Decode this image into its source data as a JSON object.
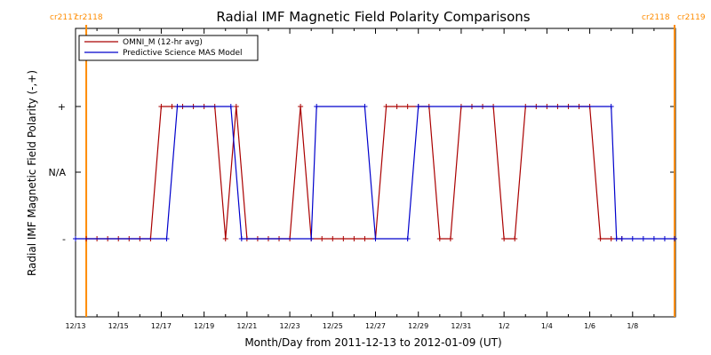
{
  "chart_data": {
    "type": "line",
    "title": "Radial IMF Magnetic Field Polarity Comparisons",
    "xlabel": "Month/Day from 2011-12-13 to 2012-01-09 (UT)",
    "ylabel": "Radial IMF Magnetic Field Polarity (-,+)",
    "xlim": [
      "2011-12-13",
      "2012-01-09"
    ],
    "x_ticks": [
      "12/13",
      "12/15",
      "12/17",
      "12/19",
      "12/21",
      "12/23",
      "12/25",
      "12/27",
      "12/29",
      "12/31",
      "1/2",
      "1/4",
      "1/6",
      "1/8"
    ],
    "y_ticks": [
      "+",
      "N/A",
      "-"
    ],
    "y_levels": [
      "+",
      "N/A",
      "-"
    ],
    "carrington_markers": [
      {
        "date": "2011-12-13 12:00",
        "left_label": "cr2117",
        "right_label": "cr2118",
        "color": "#ff8c00"
      },
      {
        "date": "2012-01-09 23:00",
        "left_label": "cr2118",
        "right_label": "cr2119",
        "color": "#ff8c00"
      }
    ],
    "legend": {
      "position": "top-left"
    },
    "series": [
      {
        "name": "OMNI_M (12-hr avg)",
        "color": "#aa0000",
        "markers": true,
        "points": [
          [
            "2011-12-13 12:00",
            "-"
          ],
          [
            "2011-12-14 00:00",
            "-"
          ],
          [
            "2011-12-14 12:00",
            "-"
          ],
          [
            "2011-12-15 00:00",
            "-"
          ],
          [
            "2011-12-15 12:00",
            "-"
          ],
          [
            "2011-12-16 00:00",
            "-"
          ],
          [
            "2011-12-16 12:00",
            "-"
          ],
          [
            "2011-12-17 00:00",
            "+"
          ],
          [
            "2011-12-17 12:00",
            "+"
          ],
          [
            "2011-12-18 00:00",
            "+"
          ],
          [
            "2011-12-18 12:00",
            "+"
          ],
          [
            "2011-12-19 00:00",
            "+"
          ],
          [
            "2011-12-19 12:00",
            "+"
          ],
          [
            "2011-12-20 00:00",
            "-"
          ],
          [
            "2011-12-20 12:00",
            "+"
          ],
          [
            "2011-12-21 00:00",
            "-"
          ],
          [
            "2011-12-21 12:00",
            "-"
          ],
          [
            "2011-12-22 00:00",
            "-"
          ],
          [
            "2011-12-22 12:00",
            "-"
          ],
          [
            "2011-12-23 00:00",
            "-"
          ],
          [
            "2011-12-23 12:00",
            "+"
          ],
          [
            "2011-12-24 00:00",
            "-"
          ],
          [
            "2011-12-24 12:00",
            "-"
          ],
          [
            "2011-12-25 00:00",
            "-"
          ],
          [
            "2011-12-25 12:00",
            "-"
          ],
          [
            "2011-12-26 00:00",
            "-"
          ],
          [
            "2011-12-26 12:00",
            "-"
          ],
          [
            "2011-12-27 00:00",
            "-"
          ],
          [
            "2011-12-27 12:00",
            "+"
          ],
          [
            "2011-12-28 00:00",
            "+"
          ],
          [
            "2011-12-28 12:00",
            "+"
          ],
          [
            "2011-12-29 00:00",
            "+"
          ],
          [
            "2011-12-29 12:00",
            "+"
          ],
          [
            "2011-12-30 00:00",
            "-"
          ],
          [
            "2011-12-30 12:00",
            "-"
          ],
          [
            "2011-12-31 00:00",
            "+"
          ],
          [
            "2011-12-31 12:00",
            "+"
          ],
          [
            "2012-01-01 00:00",
            "+"
          ],
          [
            "2012-01-01 12:00",
            "+"
          ],
          [
            "2012-01-02 00:00",
            "-"
          ],
          [
            "2012-01-02 12:00",
            "-"
          ],
          [
            "2012-01-03 00:00",
            "+"
          ],
          [
            "2012-01-03 12:00",
            "+"
          ],
          [
            "2012-01-04 00:00",
            "+"
          ],
          [
            "2012-01-04 12:00",
            "+"
          ],
          [
            "2012-01-05 00:00",
            "+"
          ],
          [
            "2012-01-05 12:00",
            "+"
          ],
          [
            "2012-01-06 00:00",
            "+"
          ],
          [
            "2012-01-06 12:00",
            "-"
          ],
          [
            "2012-01-07 00:00",
            "-"
          ],
          [
            "2012-01-07 12:00",
            "-"
          ]
        ]
      },
      {
        "name": "Predictive Science MAS Model",
        "color": "#0000cc",
        "markers": true,
        "points": [
          [
            "2011-12-13 00:00",
            "-"
          ],
          [
            "2011-12-17 06:00",
            "-"
          ],
          [
            "2011-12-17 18:00",
            "+"
          ],
          [
            "2011-12-20 06:00",
            "+"
          ],
          [
            "2011-12-20 18:00",
            "-"
          ],
          [
            "2011-12-24 00:00",
            "-"
          ],
          [
            "2011-12-24 06:00",
            "+"
          ],
          [
            "2011-12-26 12:00",
            "+"
          ],
          [
            "2011-12-27 00:00",
            "-"
          ],
          [
            "2011-12-28 12:00",
            "-"
          ],
          [
            "2011-12-29 00:00",
            "+"
          ],
          [
            "2012-01-07 00:00",
            "+"
          ],
          [
            "2012-01-07 06:00",
            "-"
          ],
          [
            "2012-01-07 12:00",
            "-"
          ],
          [
            "2012-01-08 00:00",
            "-"
          ],
          [
            "2012-01-08 12:00",
            "-"
          ],
          [
            "2012-01-09 00:00",
            "-"
          ],
          [
            "2012-01-09 12:00",
            "-"
          ],
          [
            "2012-01-09 23:00",
            "-"
          ]
        ]
      }
    ]
  }
}
